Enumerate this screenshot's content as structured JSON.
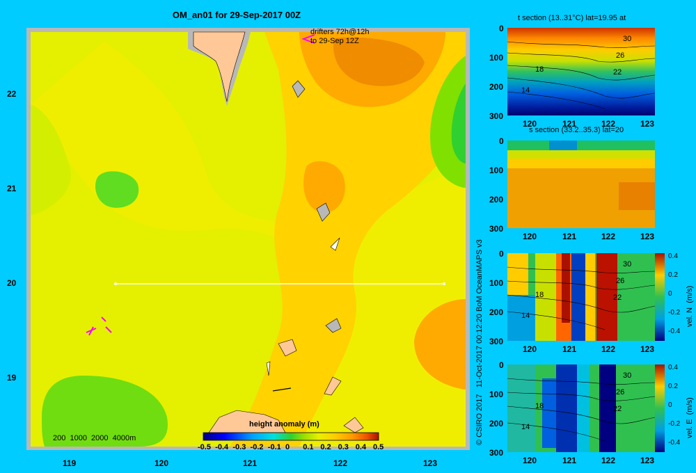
{
  "title": "OM_an01 for 29-Sep-2017 00Z",
  "main_map": {
    "x_ticks": [
      "119",
      "120",
      "121",
      "122",
      "123"
    ],
    "y_ticks": [
      "22",
      "21",
      "20",
      "19"
    ],
    "drifters_label": [
      "drifters 72h@12h",
      "to 29-Sep 12Z"
    ],
    "depth_legend": "200  1000  2000  4000m",
    "colorbar": {
      "title": "height anomaly  (m)",
      "ticks": [
        "-0.5",
        "-0.4",
        "-0.3",
        "-0.2",
        "-0.1",
        "0",
        "0.1",
        "0.2",
        "0.3",
        "0.4",
        "0.5"
      ],
      "range": [
        -0.5,
        0.5
      ]
    },
    "section_lat": 20,
    "section_lon_range": [
      119.5,
      123.2
    ]
  },
  "credit": "© CSIRO 2017   11-Oct-2017 00:12:20 BoM OceanMAPS v3",
  "panels": [
    {
      "title": "t section (13..31°C) lat=19.95 at",
      "y_ticks": [
        "0",
        "100",
        "200",
        "300"
      ],
      "x_ticks": [
        "120",
        "121",
        "122",
        "123"
      ],
      "contour_labels": [
        "30",
        "26",
        "22",
        "18",
        "14"
      ]
    },
    {
      "title": "s section (33.2..35.3) lat=20",
      "y_ticks": [
        "0",
        "100",
        "200",
        "300"
      ],
      "x_ticks": [
        "120",
        "121",
        "122",
        "123"
      ]
    },
    {
      "y_ticks": [
        "0",
        "100",
        "200",
        "300"
      ],
      "x_ticks": [
        "120",
        "121",
        "122",
        "123"
      ],
      "contour_labels": [
        "30",
        "26",
        "22",
        "18",
        "14"
      ],
      "colorbar_ticks": [
        "0.4",
        "0.2",
        "0",
        "-0.2",
        "-0.4"
      ],
      "colorbar_label": "vel. N  (m/s)"
    },
    {
      "y_ticks": [
        "0",
        "100",
        "200",
        "300"
      ],
      "x_ticks": [
        "120",
        "121",
        "122",
        "123"
      ],
      "contour_labels": [
        "30",
        "26",
        "22",
        "18",
        "14"
      ],
      "colorbar_ticks": [
        "0.4",
        "0.2",
        "0",
        "-0.2",
        "-0.4"
      ],
      "colorbar_label": "vel. E  (m/s)"
    }
  ]
}
